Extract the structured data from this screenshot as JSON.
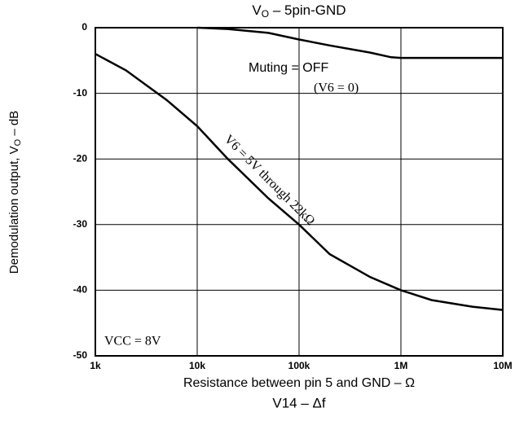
{
  "chart_data": {
    "type": "line",
    "title": {
      "main": "V",
      "sub": "O",
      "rest": " – 5pin-GND"
    },
    "ylabel": {
      "main": "Demodulation output, V",
      "sub": "O",
      "rest": " – dB"
    },
    "xlabel": "Resistance between pin 5 and GND – Ω",
    "next_title": "V14 – Δf",
    "annotations": {
      "muting": "Muting = OFF",
      "v6zero": "(V6 = 0)",
      "v6five": "V6 = 5V through 22kΩ",
      "vcc": "VCC = 8V"
    },
    "xscale": "log",
    "xlim": [
      1000,
      10000000
    ],
    "xticks": [
      {
        "value": 1000,
        "label": "1k"
      },
      {
        "value": 10000,
        "label": "10k"
      },
      {
        "value": 100000,
        "label": "100k"
      },
      {
        "value": 1000000,
        "label": "1M"
      },
      {
        "value": 10000000,
        "label": "10M"
      }
    ],
    "ylim": [
      -50,
      0
    ],
    "yticks": [
      0,
      -10,
      -20,
      -30,
      -40,
      -50
    ],
    "grid": true,
    "series": [
      {
        "color": "#000000",
        "x": [
          10000,
          20000,
          50000,
          100000,
          200000,
          500000,
          800000,
          1000000,
          10000000
        ],
        "values": [
          0,
          -0.2,
          -0.8,
          -1.8,
          -2.7,
          -3.8,
          -4.5,
          -4.6,
          -4.6
        ]
      },
      {
        "color": "#000000",
        "x": [
          1000,
          2000,
          5000,
          10000,
          20000,
          50000,
          100000,
          200000,
          500000,
          1000000,
          2000000,
          5000000,
          10000000
        ],
        "values": [
          -4,
          -6.5,
          -11,
          -15,
          -20,
          -26,
          -30,
          -34.5,
          -38,
          -40,
          -41.5,
          -42.5,
          -43
        ]
      }
    ]
  }
}
